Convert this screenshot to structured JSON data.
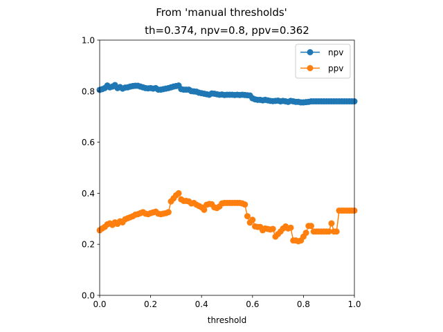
{
  "chart_data": {
    "type": "line",
    "suptitle": "From 'manual thresholds'",
    "title": "th=0.374, npv=0.8, ppv=0.362",
    "xlabel": "threshold",
    "ylabel": "",
    "xlim": [
      0.0,
      1.0
    ],
    "ylim": [
      0.0,
      1.0
    ],
    "x_ticks": [
      "0.0",
      "0.2",
      "0.4",
      "0.6",
      "0.8",
      "1.0"
    ],
    "y_ticks": [
      "0.0",
      "0.2",
      "0.4",
      "0.6",
      "0.8",
      "1.0"
    ],
    "grid": false,
    "legend_position": "upper right",
    "series": [
      {
        "name": "npv",
        "color": "#1f77b4",
        "marker": "circle",
        "points": [
          [
            0.0,
            0.805
          ],
          [
            0.01,
            0.808
          ],
          [
            0.02,
            0.812
          ],
          [
            0.03,
            0.822
          ],
          [
            0.04,
            0.815
          ],
          [
            0.05,
            0.818
          ],
          [
            0.06,
            0.824
          ],
          [
            0.07,
            0.812
          ],
          [
            0.08,
            0.816
          ],
          [
            0.09,
            0.81
          ],
          [
            0.1,
            0.814
          ],
          [
            0.11,
            0.815
          ],
          [
            0.12,
            0.818
          ],
          [
            0.13,
            0.82
          ],
          [
            0.14,
            0.821
          ],
          [
            0.15,
            0.821
          ],
          [
            0.16,
            0.818
          ],
          [
            0.17,
            0.815
          ],
          [
            0.18,
            0.812
          ],
          [
            0.19,
            0.811
          ],
          [
            0.2,
            0.812
          ],
          [
            0.21,
            0.81
          ],
          [
            0.22,
            0.812
          ],
          [
            0.23,
            0.806
          ],
          [
            0.24,
            0.806
          ],
          [
            0.25,
            0.808
          ],
          [
            0.26,
            0.81
          ],
          [
            0.27,
            0.812
          ],
          [
            0.28,
            0.815
          ],
          [
            0.29,
            0.818
          ],
          [
            0.3,
            0.82
          ],
          [
            0.31,
            0.822
          ],
          [
            0.32,
            0.808
          ],
          [
            0.33,
            0.806
          ],
          [
            0.34,
            0.806
          ],
          [
            0.35,
            0.806
          ],
          [
            0.36,
            0.8
          ],
          [
            0.37,
            0.799
          ],
          [
            0.38,
            0.798
          ],
          [
            0.39,
            0.794
          ],
          [
            0.4,
            0.792
          ],
          [
            0.41,
            0.79
          ],
          [
            0.42,
            0.788
          ],
          [
            0.43,
            0.786
          ],
          [
            0.44,
            0.791
          ],
          [
            0.45,
            0.79
          ],
          [
            0.46,
            0.788
          ],
          [
            0.47,
            0.786
          ],
          [
            0.48,
            0.787
          ],
          [
            0.49,
            0.785
          ],
          [
            0.5,
            0.786
          ],
          [
            0.51,
            0.786
          ],
          [
            0.52,
            0.786
          ],
          [
            0.53,
            0.785
          ],
          [
            0.54,
            0.786
          ],
          [
            0.55,
            0.785
          ],
          [
            0.56,
            0.786
          ],
          [
            0.57,
            0.785
          ],
          [
            0.58,
            0.784
          ],
          [
            0.59,
            0.783
          ],
          [
            0.6,
            0.772
          ],
          [
            0.61,
            0.768
          ],
          [
            0.62,
            0.766
          ],
          [
            0.63,
            0.766
          ],
          [
            0.64,
            0.764
          ],
          [
            0.65,
            0.766
          ],
          [
            0.66,
            0.764
          ],
          [
            0.67,
            0.762
          ],
          [
            0.68,
            0.761
          ],
          [
            0.69,
            0.762
          ],
          [
            0.7,
            0.763
          ],
          [
            0.71,
            0.76
          ],
          [
            0.72,
            0.762
          ],
          [
            0.73,
            0.76
          ],
          [
            0.74,
            0.758
          ],
          [
            0.75,
            0.762
          ],
          [
            0.76,
            0.76
          ],
          [
            0.77,
            0.758
          ],
          [
            0.78,
            0.758
          ],
          [
            0.79,
            0.756
          ],
          [
            0.8,
            0.756
          ],
          [
            0.81,
            0.757
          ],
          [
            0.82,
            0.758
          ],
          [
            0.83,
            0.76
          ],
          [
            0.84,
            0.76
          ],
          [
            0.85,
            0.76
          ],
          [
            0.86,
            0.76
          ],
          [
            0.87,
            0.76
          ],
          [
            0.88,
            0.76
          ],
          [
            0.89,
            0.76
          ],
          [
            0.9,
            0.76
          ],
          [
            0.91,
            0.76
          ],
          [
            0.92,
            0.76
          ],
          [
            0.93,
            0.76
          ],
          [
            0.94,
            0.76
          ],
          [
            0.95,
            0.76
          ],
          [
            0.96,
            0.76
          ],
          [
            0.97,
            0.76
          ],
          [
            0.98,
            0.76
          ],
          [
            0.99,
            0.76
          ],
          [
            1.0,
            0.76
          ]
        ]
      },
      {
        "name": "ppv",
        "color": "#ff7f0e",
        "marker": "circle",
        "points": [
          [
            0.0,
            0.255
          ],
          [
            0.01,
            0.262
          ],
          [
            0.02,
            0.268
          ],
          [
            0.03,
            0.278
          ],
          [
            0.04,
            0.282
          ],
          [
            0.05,
            0.276
          ],
          [
            0.06,
            0.286
          ],
          [
            0.07,
            0.28
          ],
          [
            0.08,
            0.29
          ],
          [
            0.09,
            0.286
          ],
          [
            0.1,
            0.298
          ],
          [
            0.11,
            0.302
          ],
          [
            0.12,
            0.306
          ],
          [
            0.13,
            0.31
          ],
          [
            0.14,
            0.316
          ],
          [
            0.15,
            0.318
          ],
          [
            0.16,
            0.322
          ],
          [
            0.17,
            0.326
          ],
          [
            0.18,
            0.32
          ],
          [
            0.19,
            0.318
          ],
          [
            0.2,
            0.322
          ],
          [
            0.21,
            0.325
          ],
          [
            0.22,
            0.328
          ],
          [
            0.23,
            0.32
          ],
          [
            0.24,
            0.318
          ],
          [
            0.25,
            0.32
          ],
          [
            0.26,
            0.322
          ],
          [
            0.27,
            0.326
          ],
          [
            0.28,
            0.368
          ],
          [
            0.29,
            0.38
          ],
          [
            0.3,
            0.392
          ],
          [
            0.31,
            0.4
          ],
          [
            0.32,
            0.376
          ],
          [
            0.33,
            0.37
          ],
          [
            0.34,
            0.37
          ],
          [
            0.35,
            0.368
          ],
          [
            0.36,
            0.36
          ],
          [
            0.37,
            0.362
          ],
          [
            0.38,
            0.355
          ],
          [
            0.39,
            0.35
          ],
          [
            0.4,
            0.345
          ],
          [
            0.41,
            0.335
          ],
          [
            0.42,
            0.355
          ],
          [
            0.43,
            0.358
          ],
          [
            0.44,
            0.357
          ],
          [
            0.45,
            0.345
          ],
          [
            0.46,
            0.342
          ],
          [
            0.47,
            0.348
          ],
          [
            0.48,
            0.36
          ],
          [
            0.49,
            0.362
          ],
          [
            0.5,
            0.362
          ],
          [
            0.51,
            0.362
          ],
          [
            0.52,
            0.362
          ],
          [
            0.53,
            0.362
          ],
          [
            0.54,
            0.362
          ],
          [
            0.55,
            0.362
          ],
          [
            0.56,
            0.36
          ],
          [
            0.57,
            0.356
          ],
          [
            0.58,
            0.31
          ],
          [
            0.59,
            0.285
          ],
          [
            0.6,
            0.296
          ],
          [
            0.61,
            0.27
          ],
          [
            0.62,
            0.268
          ],
          [
            0.63,
            0.268
          ],
          [
            0.64,
            0.255
          ],
          [
            0.65,
            0.262
          ],
          [
            0.66,
            0.26
          ],
          [
            0.67,
            0.258
          ],
          [
            0.68,
            0.26
          ],
          [
            0.69,
            0.23
          ],
          [
            0.7,
            0.24
          ],
          [
            0.71,
            0.25
          ],
          [
            0.72,
            0.262
          ],
          [
            0.73,
            0.27
          ],
          [
            0.74,
            0.262
          ],
          [
            0.75,
            0.265
          ],
          [
            0.76,
            0.215
          ],
          [
            0.77,
            0.215
          ],
          [
            0.78,
            0.212
          ],
          [
            0.79,
            0.215
          ],
          [
            0.8,
            0.23
          ],
          [
            0.81,
            0.245
          ],
          [
            0.82,
            0.272
          ],
          [
            0.83,
            0.272
          ],
          [
            0.84,
            0.25
          ],
          [
            0.85,
            0.25
          ],
          [
            0.86,
            0.25
          ],
          [
            0.87,
            0.25
          ],
          [
            0.88,
            0.25
          ],
          [
            0.89,
            0.25
          ],
          [
            0.9,
            0.25
          ],
          [
            0.91,
            0.282
          ],
          [
            0.92,
            0.25
          ],
          [
            0.93,
            0.25
          ],
          [
            0.94,
            0.332
          ],
          [
            0.95,
            0.332
          ],
          [
            0.96,
            0.332
          ],
          [
            0.97,
            0.332
          ],
          [
            0.98,
            0.332
          ],
          [
            0.99,
            0.332
          ],
          [
            1.0,
            0.332
          ]
        ]
      }
    ]
  }
}
